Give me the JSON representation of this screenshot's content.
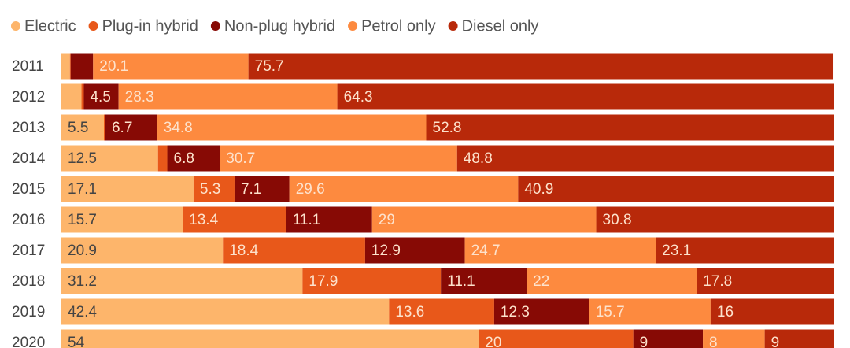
{
  "chart_data": {
    "type": "stacked-bar-horizontal",
    "categories": [
      "2011",
      "2012",
      "2013",
      "2014",
      "2015",
      "2016",
      "2017",
      "2018",
      "2019",
      "2020"
    ],
    "xlim": [
      0,
      100
    ],
    "series": [
      {
        "name": "Electric",
        "color": "#fdb56b",
        "label_color": "#444444",
        "values": [
          1.1,
          2.6,
          5.5,
          12.5,
          17.1,
          15.7,
          20.9,
          31.2,
          42.4,
          54
        ]
      },
      {
        "name": "Plug-in hybrid",
        "color": "#e8581a",
        "label_color": "#fde2cc",
        "values": [
          0.1,
          0.3,
          0.2,
          1.2,
          5.3,
          13.4,
          18.4,
          17.9,
          13.6,
          20
        ]
      },
      {
        "name": "Non-plug hybrid",
        "color": "#870a05",
        "label_color": "#fde2cc",
        "values": [
          2.9,
          4.5,
          6.7,
          6.8,
          7.1,
          11.1,
          12.9,
          11.1,
          12.3,
          9
        ]
      },
      {
        "name": "Petrol only",
        "color": "#fd8a3f",
        "label_color": "#fde2cc",
        "values": [
          20.1,
          28.3,
          34.8,
          30.7,
          29.6,
          29,
          24.7,
          22,
          15.7,
          8
        ]
      },
      {
        "name": "Diesel only",
        "color": "#b8290a",
        "label_color": "#fde2cc",
        "values": [
          75.7,
          64.3,
          52.8,
          48.8,
          40.9,
          30.8,
          23.1,
          17.8,
          16,
          9
        ]
      }
    ]
  }
}
